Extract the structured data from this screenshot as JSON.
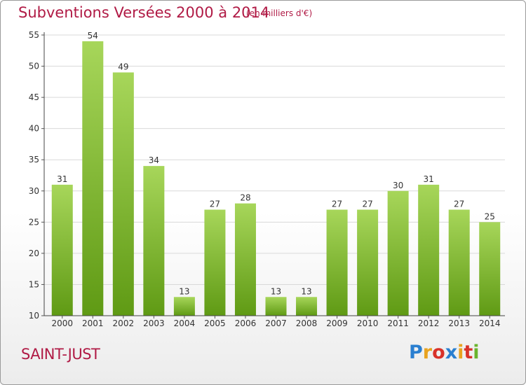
{
  "header": {
    "title": "Subventions Versées 2000 à 2014",
    "unit": "(en milliers d'€)"
  },
  "footer": {
    "town": "SAINT-JUST",
    "logo_text": "Proxiti",
    "logo_colors": [
      "#2a7fd0",
      "#e8a320",
      "#d8322a",
      "#2a7fd0",
      "#e8a320",
      "#d8322a",
      "#6ab42d"
    ]
  },
  "colors": {
    "bar_light": "#a7d65a",
    "bar_dark": "#5f9a14",
    "title": "#b01a45",
    "grid": "#d9d9d9"
  },
  "chart_data": {
    "type": "bar",
    "title": "Subventions Versées 2000 à 2014",
    "subtitle": "(en milliers d'€)",
    "categories": [
      "2000",
      "2001",
      "2002",
      "2003",
      "2004",
      "2005",
      "2006",
      "2007",
      "2008",
      "2009",
      "2010",
      "2011",
      "2012",
      "2013",
      "2014"
    ],
    "values": [
      31,
      54,
      49,
      34,
      13,
      27,
      28,
      13,
      13,
      27,
      27,
      30,
      31,
      27,
      25
    ],
    "ylim": [
      10,
      55
    ],
    "yticks": [
      10,
      15,
      20,
      25,
      30,
      35,
      40,
      45,
      50,
      55
    ],
    "grid": true,
    "data_labels": true
  }
}
